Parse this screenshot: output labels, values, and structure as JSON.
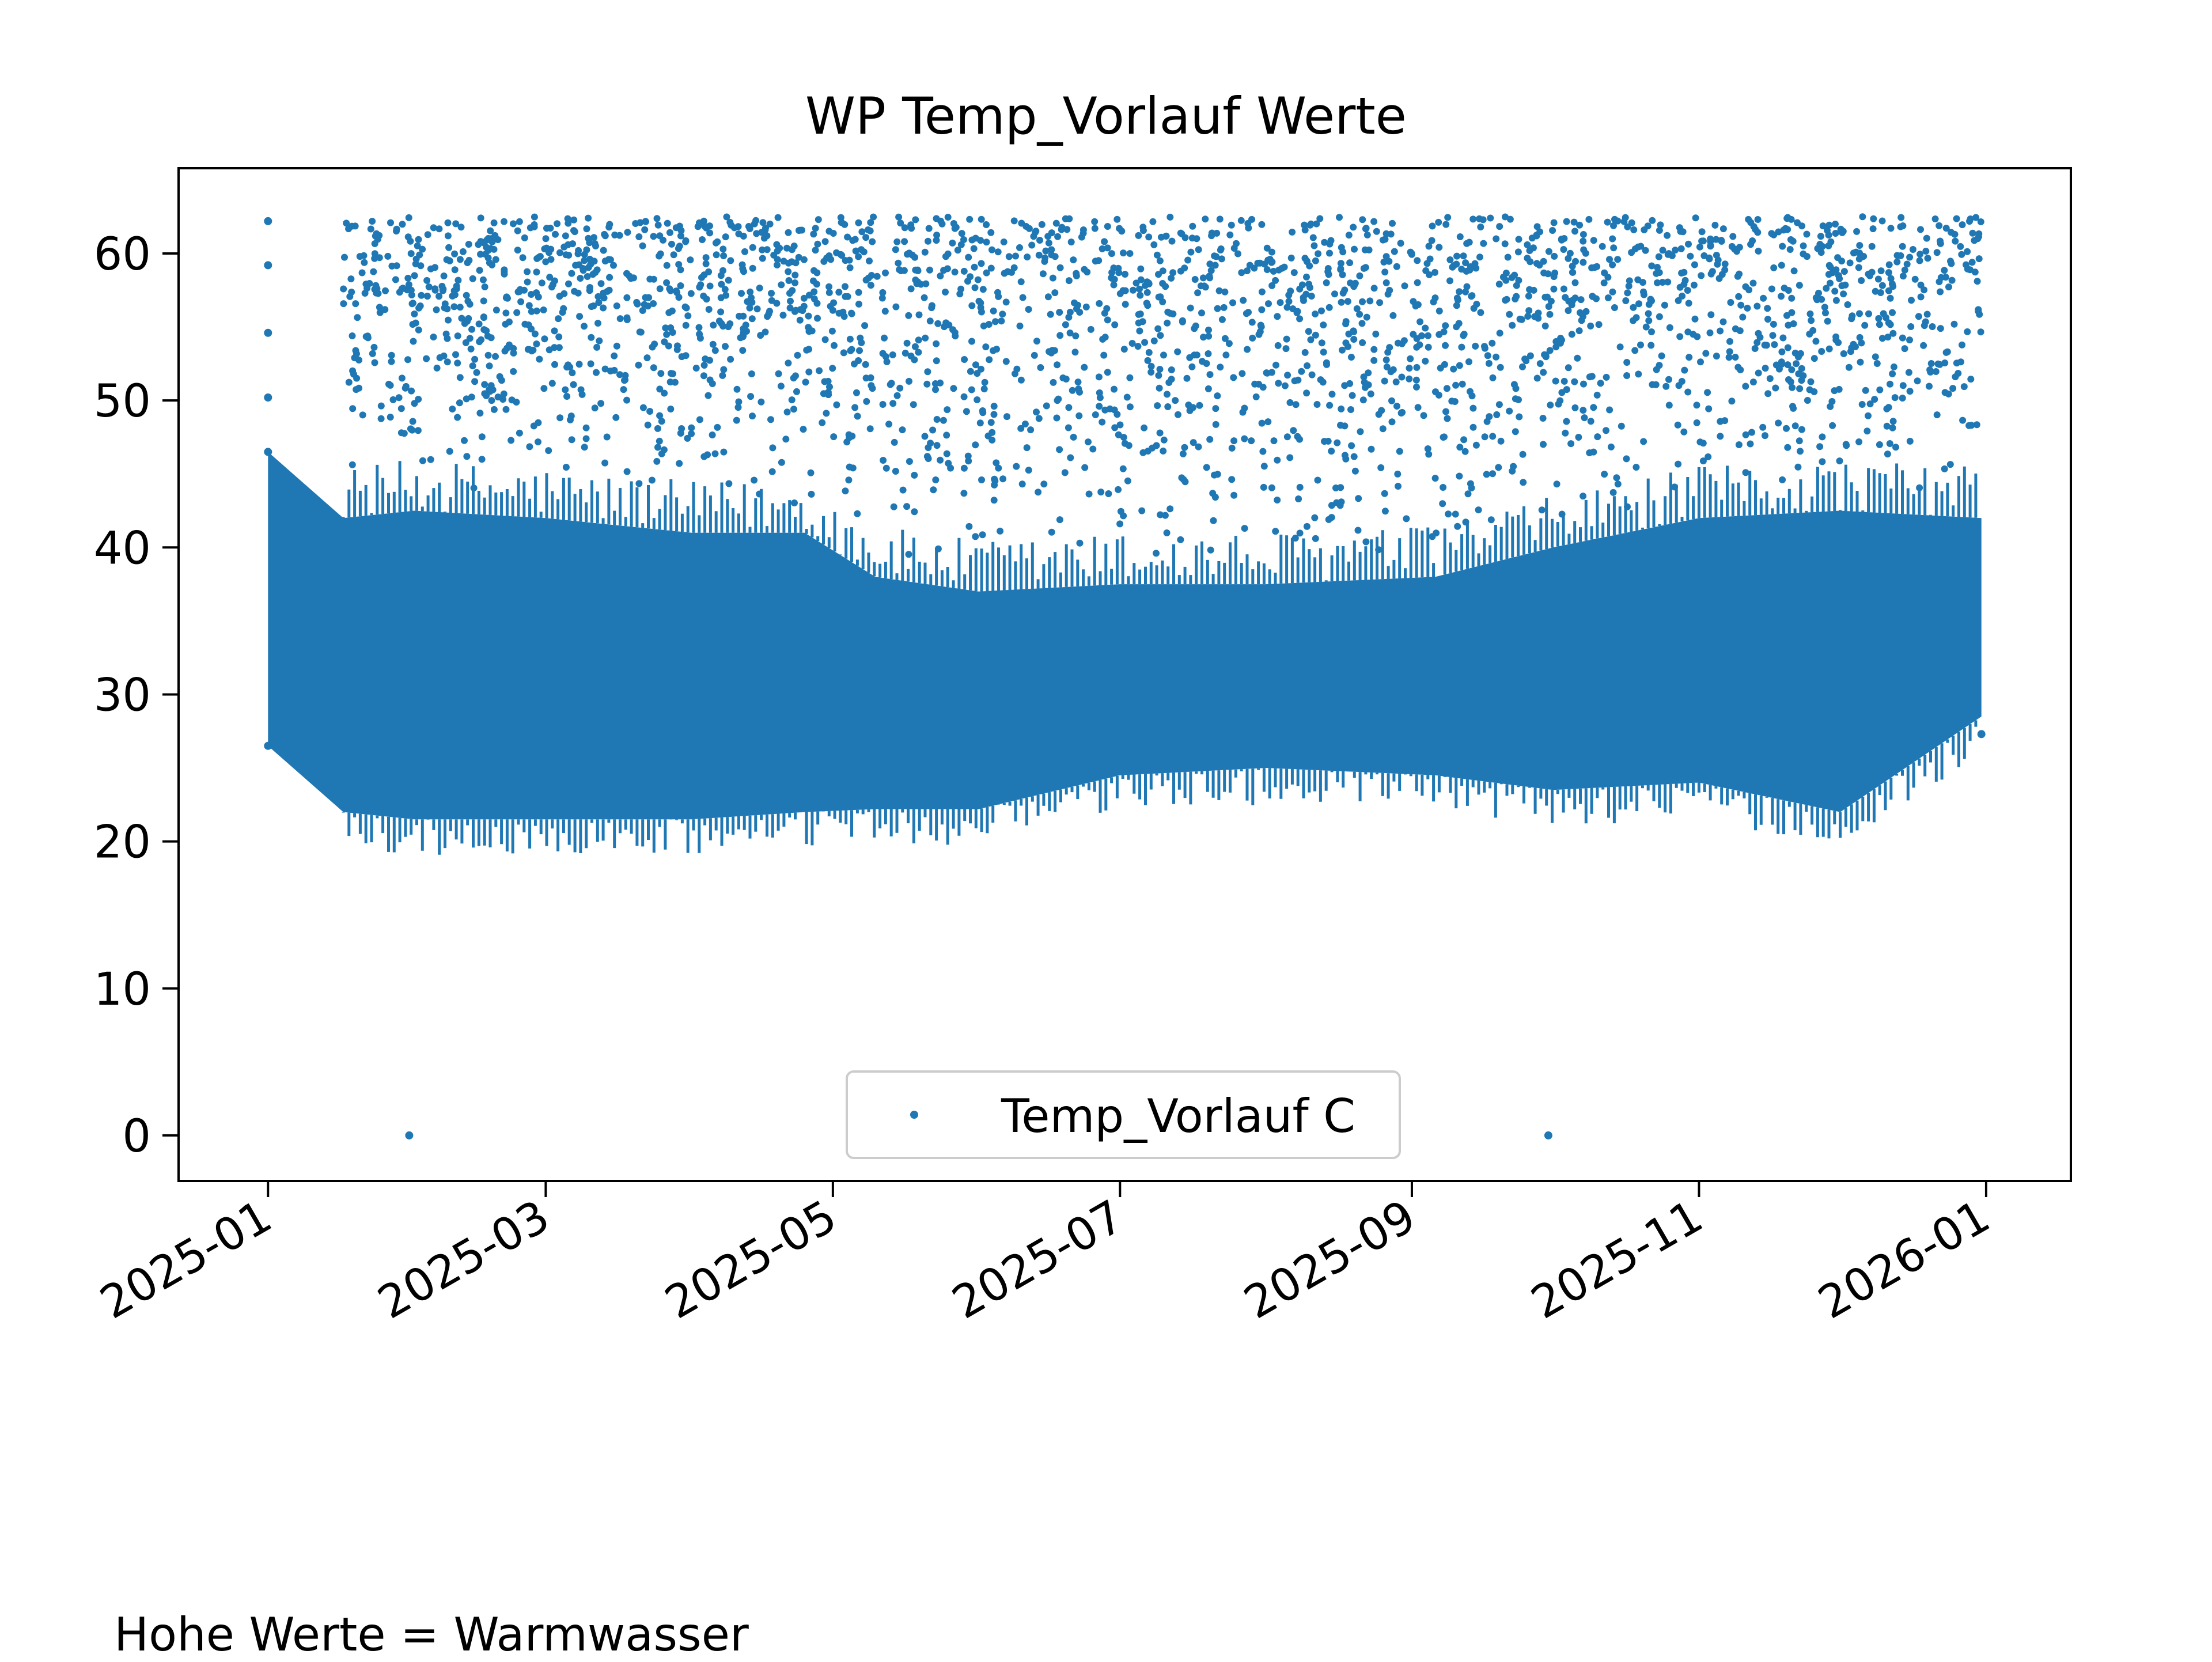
{
  "footnote": "Hohe Werte = Warmwasser",
  "chart_data": {
    "type": "scatter",
    "title": "WP Temp_Vorlauf Werte",
    "xlabel": "",
    "ylabel": "",
    "x_axis": "date",
    "xlim": [
      "2024-12-13",
      "2026-01-19"
    ],
    "ylim": [
      -3.1,
      65.8
    ],
    "x_ticks": [
      "2025-01",
      "2025-03",
      "2025-05",
      "2025-07",
      "2025-09",
      "2025-11",
      "2026-01"
    ],
    "y_ticks": [
      0,
      10,
      20,
      30,
      40,
      50,
      60
    ],
    "grid": false,
    "legend": {
      "position": "lower-center",
      "entries": [
        "Temp_Vorlauf C"
      ]
    },
    "marker_color": "#1f77b4",
    "series": [
      {
        "name": "Temp_Vorlauf C",
        "color": "#1f77b4",
        "point_samples": [
          {
            "x": "2025-01-01",
            "y": 62.2
          },
          {
            "x": "2025-01-01",
            "y": 59.2
          },
          {
            "x": "2025-01-01",
            "y": 54.6
          },
          {
            "x": "2025-01-01",
            "y": 50.2
          },
          {
            "x": "2025-01-01",
            "y": 46.5
          },
          {
            "x": "2025-01-01",
            "y": 26.5
          },
          {
            "x": "2025-01-31",
            "y": 0.0
          },
          {
            "x": "2025-09-30",
            "y": 0.0
          },
          {
            "x": "2025-12-03",
            "y": 23.3
          },
          {
            "x": "2025-12-31",
            "y": 27.3
          }
        ],
        "dense_band": [
          {
            "x": "2025-01-01",
            "low": 26.5,
            "high": 46.5
          },
          {
            "x": "2025-01-17",
            "low": 22.0,
            "high": 42.0
          },
          {
            "x": "2025-02-01",
            "low": 21.5,
            "high": 42.5
          },
          {
            "x": "2025-03-01",
            "low": 21.5,
            "high": 42.0
          },
          {
            "x": "2025-04-01",
            "low": 21.5,
            "high": 41.0
          },
          {
            "x": "2025-04-25",
            "low": 22.0,
            "high": 41.0
          },
          {
            "x": "2025-05-10",
            "low": 22.2,
            "high": 38.0
          },
          {
            "x": "2025-06-01",
            "low": 22.2,
            "high": 37.0
          },
          {
            "x": "2025-07-01",
            "low": 24.5,
            "high": 37.5
          },
          {
            "x": "2025-08-01",
            "low": 25.0,
            "high": 37.5
          },
          {
            "x": "2025-09-06",
            "low": 24.5,
            "high": 38.0
          },
          {
            "x": "2025-10-01",
            "low": 23.5,
            "high": 40.0
          },
          {
            "x": "2025-11-01",
            "low": 24.0,
            "high": 42.0
          },
          {
            "x": "2025-12-01",
            "low": 22.0,
            "high": 42.5
          },
          {
            "x": "2025-12-31",
            "low": 28.5,
            "high": 42.0
          }
        ],
        "sparse_high_range": [
          45,
          62.5
        ]
      }
    ]
  }
}
